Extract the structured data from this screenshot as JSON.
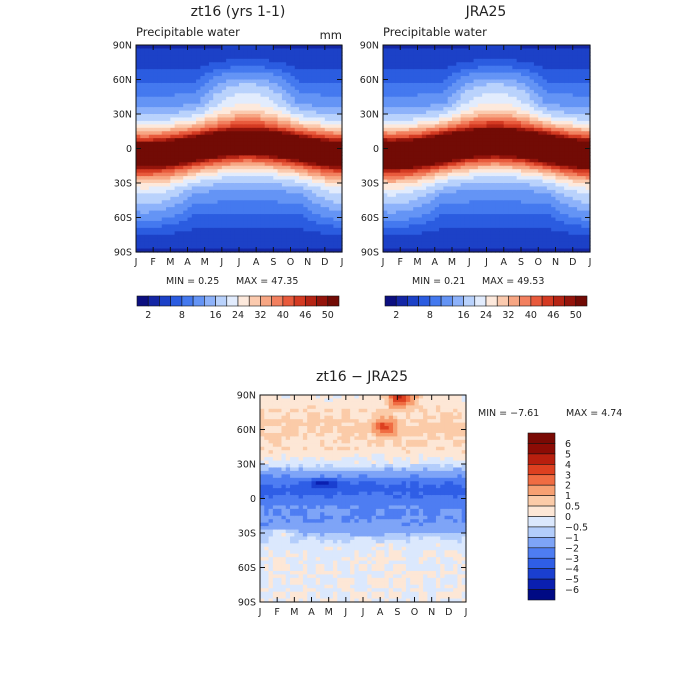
{
  "chart_data": [
    {
      "type": "heatmap",
      "title": "zt16 (yrs 1-1)",
      "subtitle": "Precipitable water",
      "units": "mm",
      "x_tick_labels": [
        "J",
        "F",
        "M",
        "A",
        "M",
        "J",
        "J",
        "A",
        "S",
        "O",
        "N",
        "D",
        "J"
      ],
      "y_tick_labels": [
        "90S",
        "60S",
        "30S",
        "0",
        "30N",
        "60N",
        "90N"
      ],
      "min_label": "MIN =    0.25",
      "max_label": "MAX =   47.35",
      "min": 0.25,
      "max": 47.35,
      "colorbar_labels": [
        "2",
        "8",
        "16",
        "24",
        "32",
        "40",
        "46",
        "50"
      ],
      "colorbar_levels": [
        2,
        4,
        6,
        8,
        10,
        13,
        16,
        20,
        24,
        28,
        32,
        36,
        40,
        43,
        46,
        48,
        50
      ],
      "colors": [
        "#0c0f80",
        "#1426a5",
        "#1c41c7",
        "#2b5ce0",
        "#4479ef",
        "#6494f5",
        "#8db2fa",
        "#b9d2fc",
        "#e2ecfd",
        "#fde9dc",
        "#fbcaae",
        "#f7a683",
        "#f2805f",
        "#e85a3c",
        "#d43a22",
        "#b52414",
        "#94140b",
        "#720b05"
      ]
    },
    {
      "type": "heatmap",
      "title": "JRA25",
      "subtitle": "Precipitable water",
      "x_tick_labels": [
        "J",
        "F",
        "M",
        "A",
        "M",
        "J",
        "J",
        "A",
        "S",
        "O",
        "N",
        "D",
        "J"
      ],
      "y_tick_labels": [
        "90S",
        "60S",
        "30S",
        "0",
        "30N",
        "60N",
        "90N"
      ],
      "min_label": "MIN =    0.21",
      "max_label": "MAX =   49.53",
      "min": 0.21,
      "max": 49.53,
      "colorbar_labels": [
        "2",
        "8",
        "16",
        "24",
        "32",
        "40",
        "46",
        "50"
      ],
      "colorbar_levels": [
        2,
        4,
        6,
        8,
        10,
        13,
        16,
        20,
        24,
        28,
        32,
        36,
        40,
        43,
        46,
        48,
        50
      ],
      "colors": [
        "#0c0f80",
        "#1426a5",
        "#1c41c7",
        "#2b5ce0",
        "#4479ef",
        "#6494f5",
        "#8db2fa",
        "#b9d2fc",
        "#e2ecfd",
        "#fde9dc",
        "#fbcaae",
        "#f7a683",
        "#f2805f",
        "#e85a3c",
        "#d43a22",
        "#b52414",
        "#94140b",
        "#720b05"
      ]
    },
    {
      "type": "heatmap",
      "title": "zt16 − JRA25",
      "x_tick_labels": [
        "J",
        "F",
        "M",
        "A",
        "M",
        "J",
        "J",
        "A",
        "S",
        "O",
        "N",
        "D",
        "J"
      ],
      "y_tick_labels": [
        "90S",
        "60S",
        "30S",
        "0",
        "30N",
        "60N",
        "90N"
      ],
      "min_label": "MIN =   −7.61",
      "max_label": "MAX =    4.74",
      "min": -7.61,
      "max": 4.74,
      "colorbar_labels": [
        "6",
        "5",
        "4",
        "3",
        "2",
        "1",
        "0.5",
        "0",
        "−0.5",
        "−1",
        "−2",
        "−3",
        "−4",
        "−5",
        "−6"
      ],
      "colorbar_levels": [
        -6,
        -5,
        -4,
        -3,
        -2,
        -1,
        -0.5,
        0,
        0.5,
        1,
        2,
        3,
        4,
        5,
        6
      ],
      "colors": [
        "#000a84",
        "#0a1fb0",
        "#1a3fd0",
        "#2f5ee6",
        "#4e7df2",
        "#7ea4f7",
        "#b3cdfb",
        "#dbe8fd",
        "#fde7d6",
        "#fbcba8",
        "#f7a072",
        "#f06c42",
        "#dd4020",
        "#b81f0e",
        "#8c0c05",
        "#7a0a04"
      ]
    }
  ]
}
